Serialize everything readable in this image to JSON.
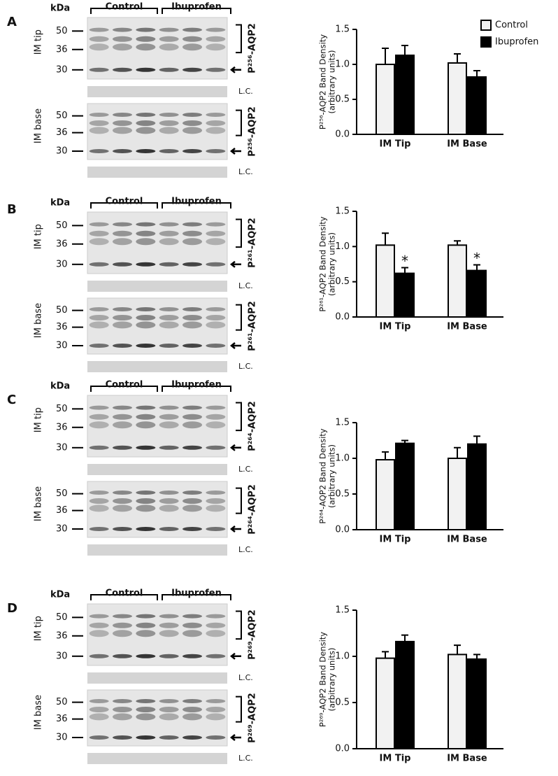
{
  "chart_data": [
    {
      "type": "bar",
      "panel": "A",
      "ylabel": [
        "P²⁵⁶-AQP2 Band Density",
        "(arbitrary units)"
      ],
      "categories": [
        "IM Tip",
        "IM Base"
      ],
      "series": [
        {
          "name": "Control",
          "color": "#f2f2f2",
          "values": [
            1.0,
            1.02
          ],
          "errors": [
            0.23,
            0.13
          ]
        },
        {
          "name": "Ibuprofen",
          "color": "#000000",
          "values": [
            1.13,
            0.82
          ],
          "errors": [
            0.14,
            0.09
          ]
        }
      ],
      "ylim": [
        0,
        1.5
      ],
      "yticks": [
        {
          "value": 0,
          "label": "0.0"
        },
        {
          "value": 0.5,
          "label": "0.5"
        },
        {
          "value": 1,
          "label": "1.0"
        },
        {
          "value": 1.5,
          "label": "1.5"
        }
      ],
      "legend": "top-right"
    },
    {
      "type": "bar",
      "panel": "B",
      "ylabel": [
        "P²⁶¹-AQP2 Band Density",
        "(arbitrary units)"
      ],
      "categories": [
        "IM Tip",
        "IM Base"
      ],
      "series": [
        {
          "color": "#f2f2f2",
          "values": [
            1.02,
            1.02
          ],
          "errors": [
            0.17,
            0.06
          ]
        },
        {
          "color": "#000000",
          "values": [
            0.62,
            0.66
          ],
          "errors": [
            0.08,
            0.08
          ],
          "significance": [
            "*",
            "*"
          ]
        }
      ],
      "ylim": [
        0,
        1.5
      ],
      "yticks": [
        {
          "value": 0,
          "label": "0.0"
        },
        {
          "value": 0.5,
          "label": "0.5"
        },
        {
          "value": 1,
          "label": "1.0"
        },
        {
          "value": 1.5,
          "label": "1.5"
        }
      ]
    },
    {
      "type": "bar",
      "panel": "C",
      "ylabel": [
        "P²⁶⁴-AQP2 Band Density",
        "(arbitrary units)"
      ],
      "categories": [
        "IM Tip",
        "IM Base"
      ],
      "series": [
        {
          "color": "#f2f2f2",
          "values": [
            0.98,
            1.0
          ],
          "errors": [
            0.11,
            0.15
          ]
        },
        {
          "color": "#000000",
          "values": [
            1.21,
            1.2
          ],
          "errors": [
            0.04,
            0.11
          ]
        }
      ],
      "ylim": [
        0,
        1.5
      ],
      "yticks": [
        {
          "value": 0,
          "label": "0.0"
        },
        {
          "value": 0.5,
          "label": "0.5"
        },
        {
          "value": 1,
          "label": "1.0"
        },
        {
          "value": 1.5,
          "label": "1.5"
        }
      ]
    },
    {
      "type": "bar",
      "panel": "D",
      "ylabel": [
        "P²⁶⁹-AQP2 Band Density",
        "(arbitrary units)"
      ],
      "categories": [
        "IM Tip",
        "IM Base"
      ],
      "series": [
        {
          "color": "#f2f2f2",
          "values": [
            0.98,
            1.02
          ],
          "errors": [
            0.07,
            0.1
          ]
        },
        {
          "color": "#000000",
          "values": [
            1.16,
            0.97
          ],
          "errors": [
            0.07,
            0.05
          ]
        }
      ],
      "ylim": [
        0,
        1.5
      ],
      "yticks": [
        {
          "value": 0,
          "label": "0.0"
        },
        {
          "value": 0.5,
          "label": "0.5"
        },
        {
          "value": 1,
          "label": "1.0"
        },
        {
          "value": 1.5,
          "label": "1.5"
        }
      ]
    }
  ],
  "blots": [
    {
      "kda": "kDa",
      "groups": [
        "Control",
        "Ibuprofen"
      ],
      "tip": {
        "label": "IM tip",
        "markers": [
          "50",
          "36",
          "30"
        ],
        "antibody": "P²⁵⁶-AQP2",
        "loading": "L.C."
      },
      "base": {
        "label": "IM base",
        "markers": [
          "50",
          "36",
          "30"
        ],
        "antibody": "P²⁵⁶-AQP2",
        "loading": "L.C."
      }
    },
    {
      "kda": "kDa",
      "groups": [
        "Control",
        "Ibuprofen"
      ],
      "tip": {
        "label": "IM tip",
        "markers": [
          "50",
          "36",
          "30"
        ],
        "antibody": "P²⁶¹-AQP2",
        "loading": "L.C."
      },
      "base": {
        "label": "IM base",
        "markers": [
          "50",
          "36",
          "30"
        ],
        "antibody": "P²⁶¹-AQP2",
        "loading": "L.C."
      }
    },
    {
      "kda": "kDa",
      "groups": [
        "Control",
        "Ibuprofen"
      ],
      "tip": {
        "label": "IM tip",
        "markers": [
          "50",
          "36",
          "30"
        ],
        "antibody": "P²⁶⁴-AQP2",
        "loading": "L.C."
      },
      "base": {
        "label": "IM base",
        "markers": [
          "50",
          "36",
          "30"
        ],
        "antibody": "P²⁶⁴-AQP2",
        "loading": "L.C."
      }
    },
    {
      "kda": "kDa",
      "groups": [
        "Control",
        "Ibuprofen"
      ],
      "tip": {
        "label": "IM tip",
        "markers": [
          "50",
          "36",
          "30"
        ],
        "antibody": "P²⁶⁹-AQP2",
        "loading": "L.C."
      },
      "base": {
        "label": "IM base",
        "markers": [
          "50",
          "36",
          "30"
        ],
        "antibody": "P²⁶⁹-AQP2",
        "loading": "L.C."
      }
    }
  ]
}
